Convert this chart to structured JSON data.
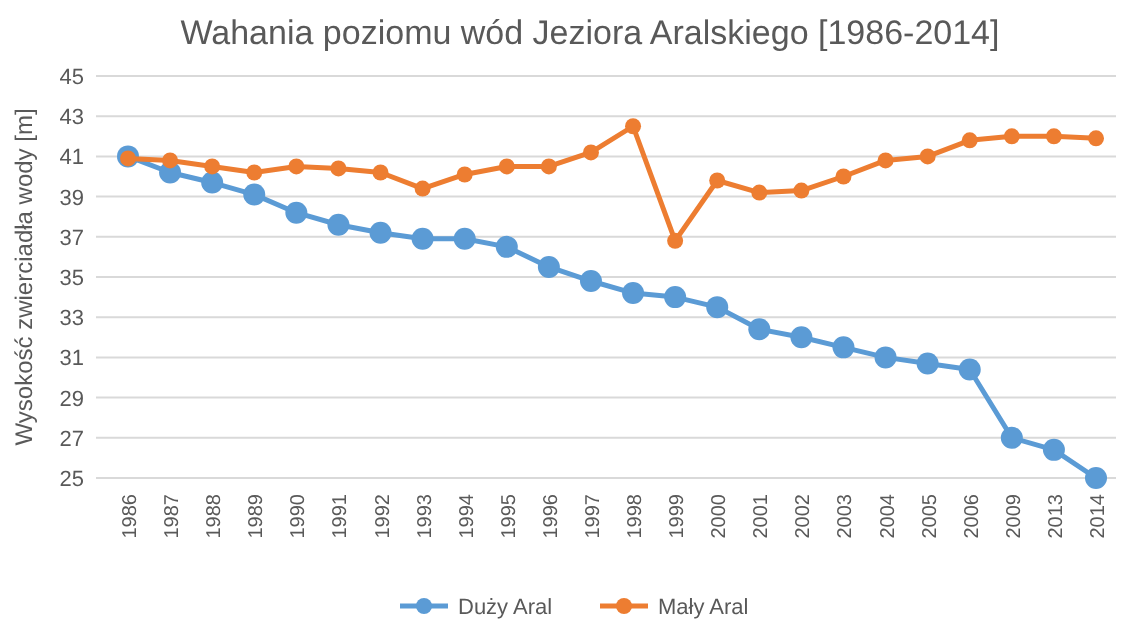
{
  "chart_data": {
    "type": "line",
    "title": "Wahania poziomu wód Jeziora Aralskiego [1986-2014]",
    "ylabel": "Wysokość zwierciadła wody [m]",
    "categories": [
      "1986",
      "1987",
      "1988",
      "1989",
      "1990",
      "1991",
      "1992",
      "1993",
      "1994",
      "1995",
      "1996",
      "1997",
      "1998",
      "1999",
      "2000",
      "2001",
      "2002",
      "2003",
      "2004",
      "2005",
      "2006",
      "2009",
      "2013",
      "2014"
    ],
    "series": [
      {
        "name": "Duży Aral",
        "color": "#5b9bd5",
        "values": [
          41.0,
          40.2,
          39.7,
          39.1,
          38.2,
          37.6,
          37.2,
          36.9,
          36.9,
          36.5,
          35.5,
          34.8,
          34.2,
          34.0,
          33.5,
          32.4,
          32.0,
          31.5,
          31.0,
          30.7,
          30.4,
          27.0,
          26.4,
          25.0
        ]
      },
      {
        "name": "Mały Aral",
        "color": "#ed7d31",
        "values": [
          40.9,
          40.8,
          40.5,
          40.2,
          40.5,
          40.4,
          40.2,
          39.4,
          40.1,
          40.5,
          40.5,
          41.2,
          42.5,
          36.8,
          39.8,
          39.2,
          39.3,
          40.0,
          40.8,
          41.0,
          41.8,
          42.0,
          42.0,
          41.9
        ]
      }
    ],
    "ylim": [
      25,
      45
    ],
    "yticks": [
      25,
      27,
      29,
      31,
      33,
      35,
      37,
      39,
      41,
      43,
      45
    ],
    "grid": "y",
    "legend": "bottom",
    "marker": "circle",
    "line_style": "solid"
  }
}
